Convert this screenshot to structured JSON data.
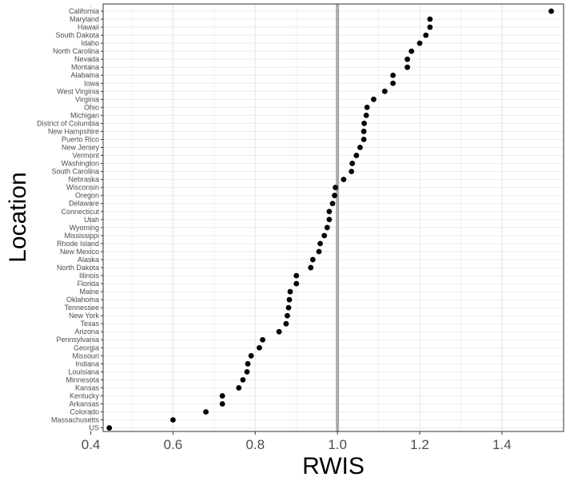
{
  "chart_data": {
    "type": "scatter",
    "title": "",
    "xlabel": "RWIS",
    "ylabel": "Location",
    "xlim": [
      0.43,
      1.55
    ],
    "x_ticks": [
      0.4,
      0.6,
      0.8,
      1.0,
      1.2,
      1.4
    ],
    "x_tick_labels": [
      "0.4",
      "0.6",
      "0.8",
      "1.0",
      "1.2",
      "1.4"
    ],
    "reference_line": {
      "x": 1.0,
      "color": "#aaaaaa"
    },
    "grid": true,
    "legend": "none",
    "point_color": "#000000",
    "categories": [
      "California",
      "Maryland",
      "Hawaii",
      "South Dakota",
      "Idaho",
      "North Carolina",
      "Nevada",
      "Montana",
      "Alabama",
      "Iowa",
      "West Virginia",
      "Virginia",
      "Ohio",
      "Michigan",
      "District of Columbia",
      "New Hampshire",
      "Puerto Rico",
      "New Jersey",
      "Vermont",
      "Washington",
      "South Carolina",
      "Nebraska",
      "Wisconsin",
      "Oregon",
      "Delaware",
      "Connecticut",
      "Utah",
      "Wyoming",
      "Mississippi",
      "Rhode Island",
      "New Mexico",
      "Alaska",
      "North Dakota",
      "Illinois",
      "Florida",
      "Maine",
      "Oklahoma",
      "Tennessee",
      "New York",
      "Texas",
      "Arizona",
      "Pennsylvania",
      "Georgia",
      "Missouri",
      "Indiana",
      "Louisiana",
      "Minnesota",
      "Kansas",
      "Kentucky",
      "Arkansas",
      "Colorado",
      "Massachusetts",
      "US"
    ],
    "values": [
      1.52,
      1.225,
      1.225,
      1.215,
      1.2,
      1.18,
      1.17,
      1.17,
      1.135,
      1.135,
      1.115,
      1.088,
      1.072,
      1.07,
      1.065,
      1.064,
      1.064,
      1.055,
      1.046,
      1.036,
      1.034,
      1.015,
      0.995,
      0.993,
      0.988,
      0.98,
      0.98,
      0.975,
      0.968,
      0.958,
      0.955,
      0.94,
      0.935,
      0.9,
      0.9,
      0.885,
      0.883,
      0.881,
      0.878,
      0.875,
      0.858,
      0.818,
      0.81,
      0.79,
      0.782,
      0.78,
      0.77,
      0.76,
      0.72,
      0.72,
      0.68,
      0.6,
      0.445
    ]
  }
}
